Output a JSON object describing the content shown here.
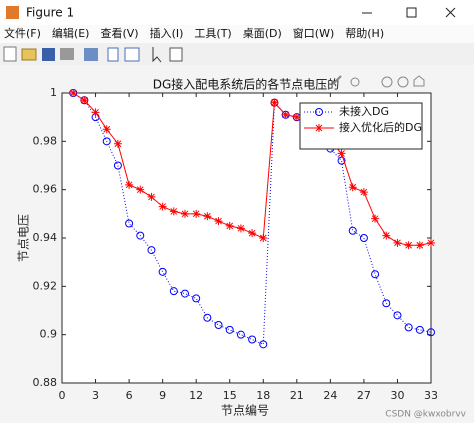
{
  "window": {
    "title": "Figure 1",
    "menu": [
      "文件(F)",
      "编辑(E)",
      "查看(V)",
      "插入(I)",
      "工具(T)",
      "桌面(D)",
      "窗口(W)",
      "帮助(H)"
    ]
  },
  "chart_data": {
    "type": "line",
    "title": "DG接入配电系统后的各节点电压的",
    "x_label": "节点编号",
    "y_label": "节点电压",
    "x": [
      1,
      2,
      3,
      4,
      5,
      6,
      7,
      8,
      9,
      10,
      11,
      12,
      13,
      14,
      15,
      16,
      17,
      18,
      19,
      20,
      21,
      22,
      23,
      24,
      25,
      26,
      27,
      28,
      29,
      30,
      31,
      32,
      33
    ],
    "series": [
      {
        "name": "未接入DG",
        "color": "#0000ff",
        "marker": "circle",
        "line_style": "dotted",
        "values": [
          1.0,
          0.997,
          0.99,
          0.98,
          0.97,
          0.946,
          0.941,
          0.935,
          0.926,
          0.918,
          0.917,
          0.915,
          0.907,
          0.904,
          0.902,
          0.9,
          0.898,
          0.896,
          0.996,
          0.991,
          0.99,
          0.99,
          0.983,
          0.977,
          0.972,
          0.943,
          0.94,
          0.925,
          0.913,
          0.908,
          0.903,
          0.902,
          0.901
        ]
      },
      {
        "name": "接入优化后的DG",
        "color": "#ff0000",
        "marker": "star",
        "line_style": "solid",
        "values": [
          1.0,
          0.997,
          0.992,
          0.985,
          0.979,
          0.962,
          0.96,
          0.957,
          0.953,
          0.951,
          0.95,
          0.95,
          0.949,
          0.947,
          0.945,
          0.944,
          0.942,
          0.94,
          0.996,
          0.991,
          0.99,
          0.99,
          0.986,
          0.98,
          0.975,
          0.961,
          0.959,
          0.948,
          0.941,
          0.938,
          0.937,
          0.937,
          0.938
        ]
      }
    ],
    "xlim": [
      0,
      33
    ],
    "ylim": [
      0.88,
      1
    ],
    "xticks": [
      0,
      3,
      6,
      9,
      12,
      15,
      18,
      21,
      24,
      27,
      30,
      33
    ],
    "yticks": [
      0.88,
      0.9,
      0.92,
      0.94,
      0.96,
      0.98,
      1
    ],
    "legend": "upper right"
  },
  "watermark": "CSDN @kwxobrvv"
}
